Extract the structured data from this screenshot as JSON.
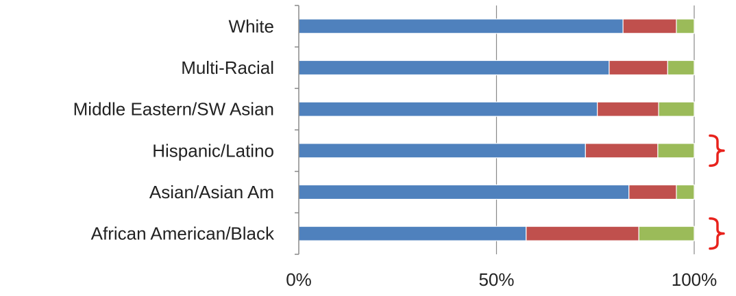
{
  "chart_data": {
    "type": "bar",
    "orientation": "horizontal",
    "stacked": true,
    "percent": true,
    "categories": [
      "White",
      "Multi-Racial",
      "Middle Eastern/SW Asian",
      "Hispanic/Latino",
      "Asian/Asian Am",
      "African American/Black"
    ],
    "series": [
      {
        "values": [
          82,
          78.5,
          75.5,
          72.5,
          83.5,
          57.5
        ],
        "color": "#4f81bd"
      },
      {
        "values": [
          13.5,
          14.8,
          15.5,
          18.3,
          12.0,
          28.5
        ],
        "color": "#c0504d"
      },
      {
        "values": [
          4.5,
          6.7,
          9.0,
          9.2,
          4.5,
          14.0
        ],
        "color": "#9bbb59"
      }
    ],
    "x_ticks": [
      "0%",
      "50%",
      "100%"
    ],
    "xlim": [
      0,
      100
    ],
    "grid": true,
    "legend": "none",
    "annotations": [
      {
        "type": "red-bracket",
        "category": "Hispanic/Latino"
      },
      {
        "type": "red-bracket",
        "category": "African American/Black"
      }
    ]
  }
}
